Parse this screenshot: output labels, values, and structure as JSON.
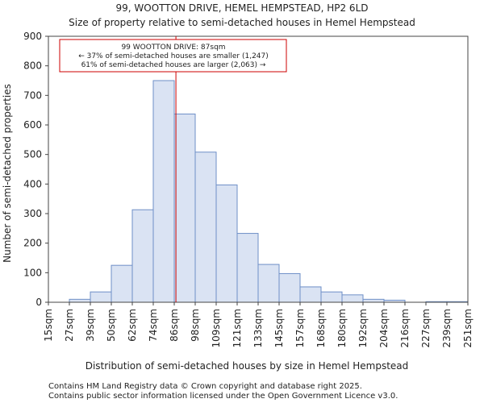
{
  "chart_data": {
    "type": "bar",
    "title": "99, WOOTTON DRIVE, HEMEL HEMPSTEAD, HP2 6LD",
    "subtitle": "Size of property relative to semi-detached houses in Hemel Hempstead",
    "xlabel": "Distribution of semi-detached houses by size in Hemel Hempstead",
    "ylabel": "Number of semi-detached properties",
    "ylim": [
      0,
      900
    ],
    "yticks": [
      0,
      100,
      200,
      300,
      400,
      500,
      600,
      700,
      800,
      900
    ],
    "bin_edges": [
      "15sqm",
      "27sqm",
      "39sqm",
      "50sqm",
      "62sqm",
      "74sqm",
      "86sqm",
      "98sqm",
      "109sqm",
      "121sqm",
      "133sqm",
      "145sqm",
      "157sqm",
      "168sqm",
      "180sqm",
      "192sqm",
      "204sqm",
      "216sqm",
      "227sqm",
      "239sqm",
      "251sqm"
    ],
    "values": [
      0,
      10,
      35,
      125,
      313,
      750,
      637,
      508,
      397,
      233,
      128,
      97,
      52,
      35,
      25,
      10,
      7,
      0,
      2,
      2
    ],
    "marker": {
      "value_sqm": 87,
      "position_in_bins": 6.08,
      "color": "#cc0000"
    },
    "annotation": {
      "line1": "99 WOOTTON DRIVE: 87sqm",
      "line2": "← 37% of semi-detached houses are smaller (1,247)",
      "line3": "61% of semi-detached houses are larger (2,063) →"
    },
    "bar_fill": "#dae3f3",
    "bar_stroke": "#6e8fc7"
  },
  "footer": {
    "line1": "Contains HM Land Registry data © Crown copyright and database right 2025.",
    "line2": "Contains public sector information licensed under the Open Government Licence v3.0."
  }
}
